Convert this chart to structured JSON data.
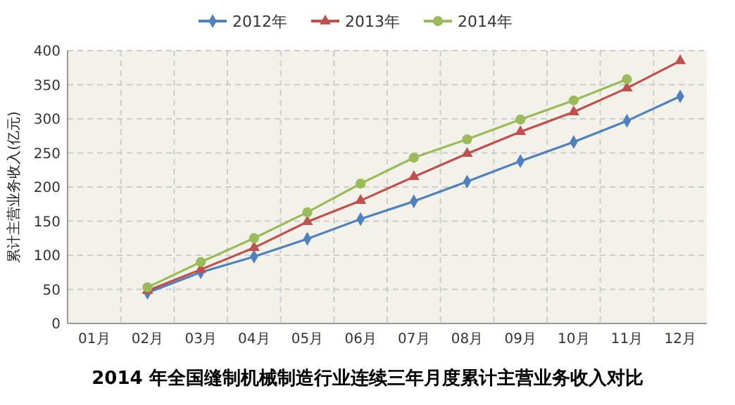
{
  "chart_data": {
    "type": "line",
    "title": "2014 年全国缝制机械制造行业连续三年月度累计主营业务收入对比",
    "ylabel": "累计主营业务收入(亿元)",
    "categories": [
      "01月",
      "02月",
      "03月",
      "04月",
      "05月",
      "06月",
      "07月",
      "08月",
      "09月",
      "10月",
      "11月",
      "12月"
    ],
    "series": [
      {
        "name": "2012年",
        "color": "#4f81bd",
        "marker": "diamond",
        "values": [
          null,
          45,
          75,
          98,
          124,
          153,
          179,
          208,
          238,
          266,
          297,
          333
        ]
      },
      {
        "name": "2013年",
        "color": "#c0504d",
        "marker": "triangle",
        "values": [
          null,
          48,
          79,
          111,
          149,
          180,
          215,
          249,
          281,
          310,
          345,
          385
        ]
      },
      {
        "name": "2014年",
        "color": "#9bbb59",
        "marker": "circle",
        "values": [
          null,
          53,
          90,
          125,
          163,
          205,
          243,
          270,
          299,
          327,
          358,
          null
        ]
      }
    ],
    "ylim": [
      0,
      400
    ],
    "yticks": [
      0,
      50,
      100,
      150,
      200,
      250,
      300,
      350,
      400
    ],
    "grid": true,
    "legend": "top",
    "line_style": "solid"
  }
}
